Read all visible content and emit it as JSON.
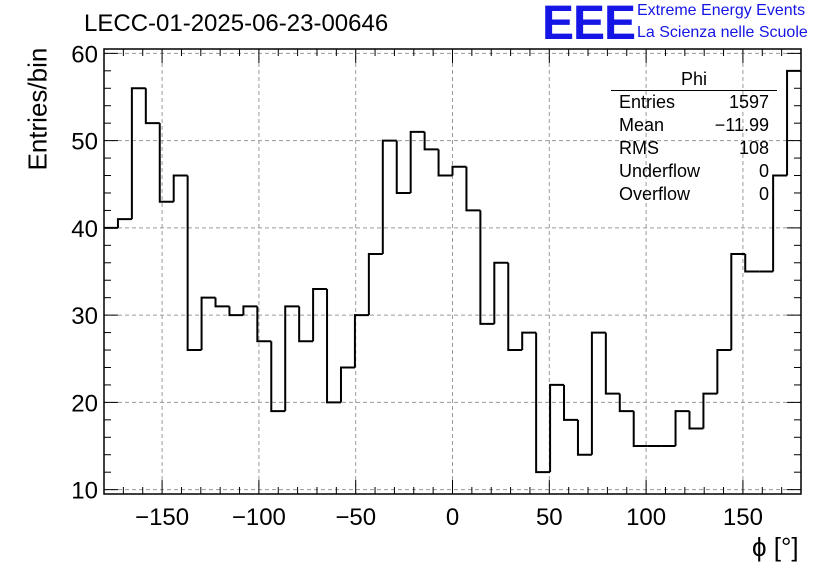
{
  "title": "LECC-01-2025-06-23-00646",
  "logo": {
    "mark": "EEE",
    "line1": "Extreme Energy Events",
    "line2": "La Scienza nelle Scuole"
  },
  "stats_box": {
    "title": "Phi",
    "rows": [
      {
        "label": "Entries",
        "value": "1597"
      },
      {
        "label": "Mean",
        "value": "−11.99"
      },
      {
        "label": "RMS",
        "value": "108"
      },
      {
        "label": "Underflow",
        "value": "0"
      },
      {
        "label": "Overflow",
        "value": "0"
      }
    ]
  },
  "chart_data": {
    "type": "bar",
    "histogram": true,
    "title": "LECC-01-2025-06-23-00646",
    "xlabel": "ϕ [°]",
    "ylabel": "Entries/bin",
    "xlim": [
      -180,
      180
    ],
    "ylim": [
      9.5,
      60.5
    ],
    "bin_width": 7.2,
    "x_ticks": [
      -150,
      -100,
      -50,
      0,
      50,
      100,
      150
    ],
    "x_tick_labels": [
      "−150",
      "−100",
      "−50",
      "0",
      "50",
      "100",
      "150"
    ],
    "y_ticks": [
      10,
      20,
      30,
      40,
      50,
      60
    ],
    "y_tick_labels": [
      "10",
      "20",
      "30",
      "40",
      "50",
      "60"
    ],
    "grid": true,
    "values": [
      40,
      41,
      56,
      52,
      43,
      46,
      26,
      32,
      31,
      30,
      31,
      27,
      19,
      31,
      27,
      33,
      20,
      24,
      30,
      37,
      50,
      44,
      51,
      49,
      46,
      47,
      42,
      29,
      36,
      26,
      28,
      12,
      22,
      18,
      14,
      28,
      21,
      19,
      15,
      15,
      15,
      19,
      17,
      21,
      26,
      37,
      35,
      35,
      46,
      58
    ]
  },
  "colors": {
    "line": "#000000",
    "grid": "#9a9a9a",
    "logo": "#1515e6"
  }
}
